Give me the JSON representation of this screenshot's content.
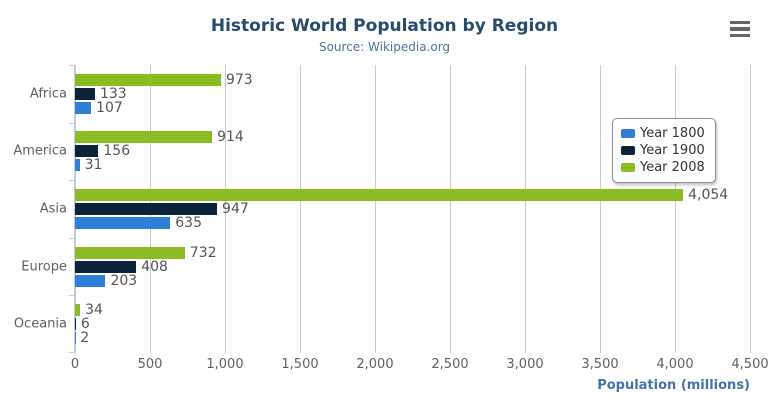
{
  "title": "Historic World Population by Region",
  "subtitle": "Source: Wikipedia.org",
  "menu": {
    "icon": "hamburger-menu-icon"
  },
  "chart_data": {
    "type": "bar",
    "orientation": "horizontal",
    "title": "Historic World Population by Region",
    "subtitle": "Source: Wikipedia.org",
    "categories": [
      "Africa",
      "America",
      "Asia",
      "Europe",
      "Oceania"
    ],
    "series": [
      {
        "name": "Year 1800",
        "color": "#2f7ed8",
        "values": [
          107,
          31,
          635,
          203,
          2
        ]
      },
      {
        "name": "Year 1900",
        "color": "#0d233a",
        "values": [
          133,
          156,
          947,
          408,
          6
        ]
      },
      {
        "name": "Year 2008",
        "color": "#8bbc21",
        "values": [
          973,
          914,
          4054,
          732,
          34
        ]
      }
    ],
    "bar_order_top_to_bottom": [
      "Year 2008",
      "Year 1900",
      "Year 1800"
    ],
    "xlabel": "Population (millions)",
    "xlim": [
      0,
      4500
    ],
    "xticks": [
      0,
      500,
      1000,
      1500,
      2000,
      2500,
      3000,
      3500,
      4000,
      4500
    ],
    "grid": true,
    "legend_position": "right",
    "data_labels": true
  },
  "colors": {
    "title": "#274b6d",
    "subtitle": "#4d759e",
    "axis_title": "#4572a7",
    "axis_labels": "#606060",
    "data_labels": "#555555",
    "gridline": "#c9c9c9",
    "axis_line": "#c0d0e0",
    "menu_icon": "#666666"
  }
}
